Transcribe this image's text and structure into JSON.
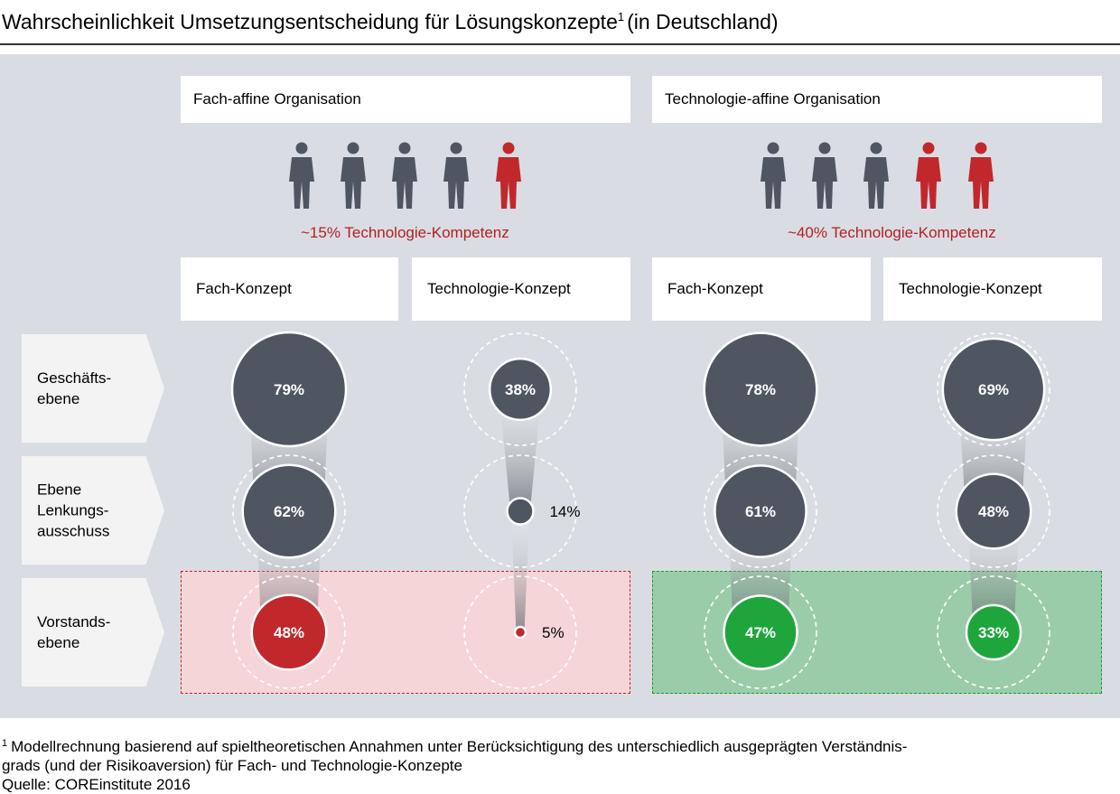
{
  "title": {
    "text": "Wahrscheinlichkeit Umsetzungsentscheidung für Lösungskonzepte",
    "footnote_mark": "1",
    "suffix": "(in Deutschland)"
  },
  "organizations": [
    {
      "name": "Fach-affine Organisation",
      "competence": "~15% Technologie-Kompetenz",
      "people": [
        "dark",
        "dark",
        "dark",
        "dark",
        "red"
      ],
      "concepts": [
        "Fach-Konzept",
        "Technologie-Konzept"
      ]
    },
    {
      "name": "Technologie-affine Organisation",
      "competence": "~40% Technologie-Kompetenz",
      "people": [
        "dark",
        "dark",
        "dark",
        "red",
        "red"
      ],
      "concepts": [
        "Fach-Konzept",
        "Technologie-Konzept"
      ]
    }
  ],
  "levels": [
    {
      "lines": [
        "Geschäfts-",
        "ebene"
      ]
    },
    {
      "lines": [
        "Ebene",
        "Lenkungs-",
        "ausschuss"
      ]
    },
    {
      "lines": [
        "Vorstands-",
        "ebene"
      ]
    }
  ],
  "colors": {
    "dark": "#4f5661",
    "red": "#c0282c",
    "green": "#1ea63c",
    "red_zone": "#f5d5d8",
    "green_zone": "#9bcca9",
    "competence_text": "#b41e22"
  },
  "chart_data": {
    "type": "bubble",
    "unit": "%",
    "columns": [
      {
        "organization": "Fach-affine Organisation",
        "concept": "Fach-Konzept",
        "values": [
          79,
          62,
          48
        ],
        "labels": [
          "79%",
          "62%",
          "48%"
        ],
        "final_color": "red"
      },
      {
        "organization": "Fach-affine Organisation",
        "concept": "Technologie-Konzept",
        "values": [
          38,
          14,
          5
        ],
        "labels": [
          "38%",
          "14%",
          "5%"
        ],
        "final_color": "red"
      },
      {
        "organization": "Technologie-affine Organisation",
        "concept": "Fach-Konzept",
        "values": [
          78,
          61,
          47
        ],
        "labels": [
          "78%",
          "61%",
          "47%"
        ],
        "final_color": "green"
      },
      {
        "organization": "Technologie-affine Organisation",
        "concept": "Technologie-Konzept",
        "values": [
          69,
          48,
          33
        ],
        "labels": [
          "69%",
          "48%",
          "33%"
        ],
        "final_color": "green"
      }
    ]
  },
  "footnote": {
    "mark": "1",
    "lines": [
      "Modellrechnung basierend auf spieltheoretischen Annahmen unter Berücksichtigung des unterschiedlich ausgeprägten Verständnis-",
      "grads (und der Risikoaversion) für Fach- und Technologie-Konzepte"
    ],
    "source": "Quelle: COREinstitute 2016"
  }
}
